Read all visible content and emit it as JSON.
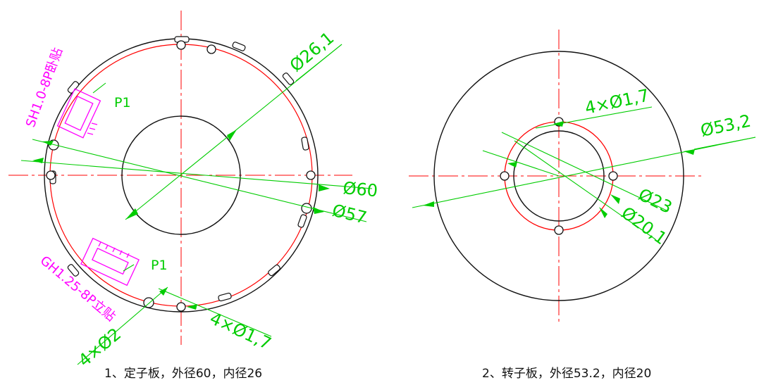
{
  "colors": {
    "outline": "#111111",
    "centerline": "#ff0000",
    "dimension": "#00cc00",
    "connector": "#ff00ff"
  },
  "stator": {
    "dim_d26": "Ø26,1",
    "dim_d60": "Ø60",
    "dim_d57": "Ø57",
    "dim_holes_big": "4×Ø2",
    "dim_holes_small": "4×Ø1,7",
    "connector_top": "SH1.0-8P卧贴",
    "connector_top_pin": "P1",
    "connector_bottom": "GH1.25-8P立贴",
    "connector_bottom_pin": "P1",
    "caption": "1、定子板，外径60，内径26"
  },
  "rotor": {
    "dim_holes": "4×Ø1,7",
    "dim_d53": "Ø53,2",
    "dim_d23": "Ø23",
    "dim_d20": "Ø20,1",
    "caption": "2、转子板，外径53.2，内径20"
  }
}
